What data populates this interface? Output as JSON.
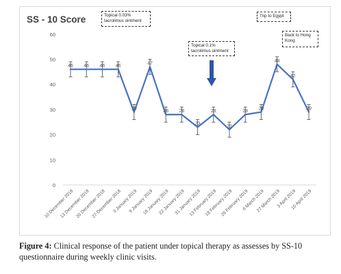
{
  "chart_data": {
    "type": "line",
    "title": "SS - 10 Score",
    "xlabel": "",
    "ylabel": "",
    "ylim": [
      0,
      60
    ],
    "yticks": [
      0,
      10,
      20,
      30,
      40,
      50,
      60
    ],
    "grid": false,
    "categories": [
      "10 December 2018",
      "13 December 2018",
      "20 December 2018",
      "27 December 2018",
      "3 January 2019",
      "9 January 2019",
      "16 January 2019",
      "22 January 2019",
      "31 January 2019",
      "13 February 2019",
      "18 February 2019",
      "26 February 2019",
      "6 March 2019",
      "27 March 2019",
      "3 April 2019",
      "10 April 2019"
    ],
    "values": [
      46,
      46,
      46,
      46,
      29,
      47,
      28,
      28,
      23,
      28,
      22,
      28,
      29,
      48,
      42,
      29
    ],
    "error": [
      3,
      3,
      3,
      3,
      3,
      3,
      3,
      3,
      3,
      3,
      3,
      3,
      3,
      3,
      3,
      3
    ],
    "annotations": [
      {
        "id": "topical-003",
        "lines": [
          "Topical 0.03%",
          "tacrolimus ointment"
        ]
      },
      {
        "id": "topical-01",
        "lines": [
          "Topical 0.1%",
          "tacrolimus ointment"
        ]
      },
      {
        "id": "trip-egypt",
        "lines": [
          "Trip to Egypt"
        ]
      },
      {
        "id": "back-hk",
        "lines": [
          "Back to Hong",
          "Kong"
        ]
      }
    ],
    "colors": {
      "line": "#4472c4",
      "arrow": "#2f56a8",
      "axis": "#d9d9d9",
      "text": "#595959"
    }
  },
  "caption": {
    "label": "Figure 4:",
    "text": " Clinical response of the patient under topical therapy as assesses by SS-10 questionnaire during weekly clinic visits."
  }
}
